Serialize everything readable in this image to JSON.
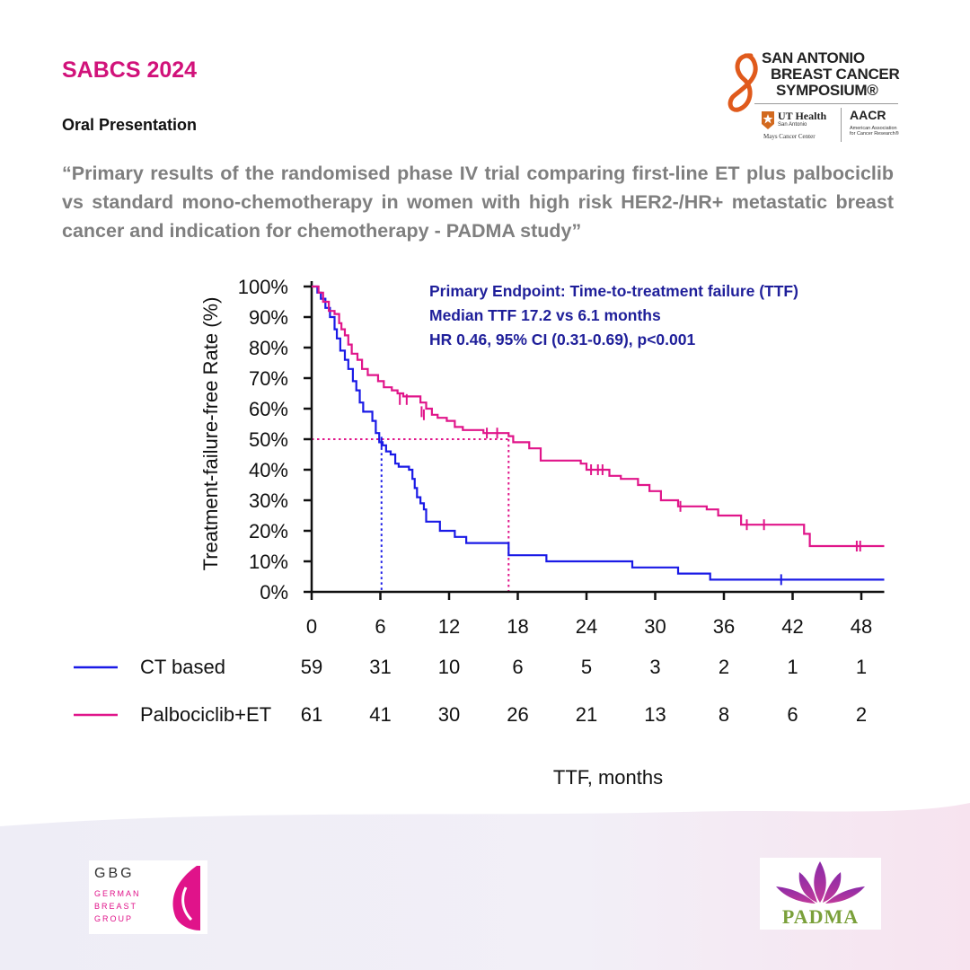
{
  "header": {
    "conference": "SABCS 2024",
    "presentation_type": "Oral Presentation",
    "quote": "“Primary results of the randomised phase IV trial comparing first-line ET plus palbociclib vs standard mono-chemotherapy in women with high risk HER2-/HR+ metastatic breast cancer and indication for chemotherapy - PADMA study”"
  },
  "logos": {
    "sabcs_line1": "SAN ANTONIO",
    "sabcs_line2": "BREAST CANCER",
    "sabcs_line3": "SYMPOSIUM®",
    "ut_name": "UT Health",
    "ut_sub1": "San Antonio",
    "ut_sub2": "Mays Cancer Center",
    "aacr": "AACR",
    "aacr_sub": "American Association for Cancer Research®",
    "gbg_abbr": "GBG",
    "gbg_full": "GERMAN\nBREAST\nGROUP",
    "padma": "PADMA"
  },
  "colors": {
    "brand_pink": "#d1127a",
    "ct_line": "#1a1ae6",
    "palbo_line": "#e0158a",
    "annotation_navy": "#1f1f9a"
  },
  "chart_data": {
    "type": "line",
    "ylabel": "Treatment-failure-free Rate (%)",
    "xlabel": "TTF, months",
    "xlim": [
      0,
      50
    ],
    "ylim": [
      0,
      100
    ],
    "x_ticks": [
      0,
      6,
      12,
      18,
      24,
      30,
      36,
      42,
      48
    ],
    "y_ticks": [
      "0%",
      "10%",
      "20%",
      "30%",
      "40%",
      "50%",
      "60%",
      "70%",
      "80%",
      "90%",
      "100%"
    ],
    "annotation": [
      "Primary Endpoint: Time-to-treatment failure (TTF)",
      "Median TTF 17.2 vs 6.1 months",
      "HR 0.46, 95% CI (0.31-0.69), p<0.001"
    ],
    "median_line_y": 50,
    "medians": [
      {
        "series": "CT based",
        "x": 6.1
      },
      {
        "series": "Palbociclib+ET",
        "x": 17.2
      }
    ],
    "series": [
      {
        "name": "CT based",
        "color": "#1a1ae6",
        "steps": [
          [
            0,
            100
          ],
          [
            0.5,
            98
          ],
          [
            0.8,
            96
          ],
          [
            1.2,
            93
          ],
          [
            1.6,
            90
          ],
          [
            2.0,
            86
          ],
          [
            2.2,
            83
          ],
          [
            2.5,
            79
          ],
          [
            2.9,
            76
          ],
          [
            3.2,
            73
          ],
          [
            3.6,
            69
          ],
          [
            3.9,
            66
          ],
          [
            4.2,
            62
          ],
          [
            4.5,
            59
          ],
          [
            5.3,
            56
          ],
          [
            5.6,
            52
          ],
          [
            5.9,
            49
          ],
          [
            6.2,
            48
          ],
          [
            6.5,
            46
          ],
          [
            6.9,
            45
          ],
          [
            7.3,
            42
          ],
          [
            7.6,
            41
          ],
          [
            8.5,
            40
          ],
          [
            8.8,
            37
          ],
          [
            9.0,
            34
          ],
          [
            9.2,
            31
          ],
          [
            9.5,
            29
          ],
          [
            9.8,
            27
          ],
          [
            10.0,
            23
          ],
          [
            11.2,
            20
          ],
          [
            12.5,
            18
          ],
          [
            13.5,
            16
          ],
          [
            17.2,
            12
          ],
          [
            20.5,
            10
          ],
          [
            28,
            8
          ],
          [
            32,
            6
          ],
          [
            34.8,
            4
          ],
          [
            50,
            4
          ]
        ],
        "censor": [
          [
            6.1,
            49
          ],
          [
            41,
            4
          ]
        ],
        "at_risk": [
          59,
          31,
          10,
          6,
          5,
          3,
          2,
          1,
          1
        ]
      },
      {
        "name": "Palbociclib+ET",
        "color": "#e0158a",
        "steps": [
          [
            0,
            100
          ],
          [
            0.6,
            98
          ],
          [
            1.0,
            95
          ],
          [
            1.5,
            92
          ],
          [
            2.0,
            91
          ],
          [
            2.4,
            88
          ],
          [
            2.6,
            86
          ],
          [
            2.9,
            84
          ],
          [
            3.2,
            81
          ],
          [
            3.5,
            78
          ],
          [
            4.0,
            76
          ],
          [
            4.4,
            73
          ],
          [
            4.9,
            71
          ],
          [
            5.8,
            69
          ],
          [
            6.3,
            67
          ],
          [
            7.0,
            66
          ],
          [
            7.5,
            65
          ],
          [
            8.0,
            64
          ],
          [
            9.5,
            62
          ],
          [
            10.0,
            60
          ],
          [
            10.5,
            58
          ],
          [
            11.0,
            57
          ],
          [
            11.8,
            56
          ],
          [
            12.5,
            54
          ],
          [
            13.2,
            53
          ],
          [
            15.0,
            52
          ],
          [
            17.2,
            51
          ],
          [
            17.6,
            49
          ],
          [
            19.0,
            47
          ],
          [
            20.0,
            43
          ],
          [
            23.5,
            42
          ],
          [
            24.0,
            40
          ],
          [
            26.0,
            38
          ],
          [
            27.0,
            37
          ],
          [
            28.5,
            35
          ],
          [
            29.5,
            33
          ],
          [
            30.5,
            30
          ],
          [
            32.0,
            28
          ],
          [
            34.5,
            27
          ],
          [
            35.5,
            25
          ],
          [
            37.5,
            22
          ],
          [
            43.0,
            19
          ],
          [
            43.5,
            15
          ],
          [
            50,
            15
          ]
        ],
        "censor": [
          [
            7.7,
            63
          ],
          [
            8.3,
            63
          ],
          [
            9.6,
            59
          ],
          [
            9.8,
            58
          ],
          [
            15.3,
            52
          ],
          [
            16.2,
            52
          ],
          [
            24.4,
            40
          ],
          [
            25.0,
            40
          ],
          [
            25.4,
            40
          ],
          [
            32.2,
            28
          ],
          [
            38.0,
            22
          ],
          [
            39.5,
            22
          ],
          [
            47.6,
            15
          ],
          [
            47.9,
            15
          ]
        ],
        "at_risk": [
          61,
          41,
          30,
          26,
          21,
          13,
          8,
          6,
          2
        ]
      }
    ]
  }
}
